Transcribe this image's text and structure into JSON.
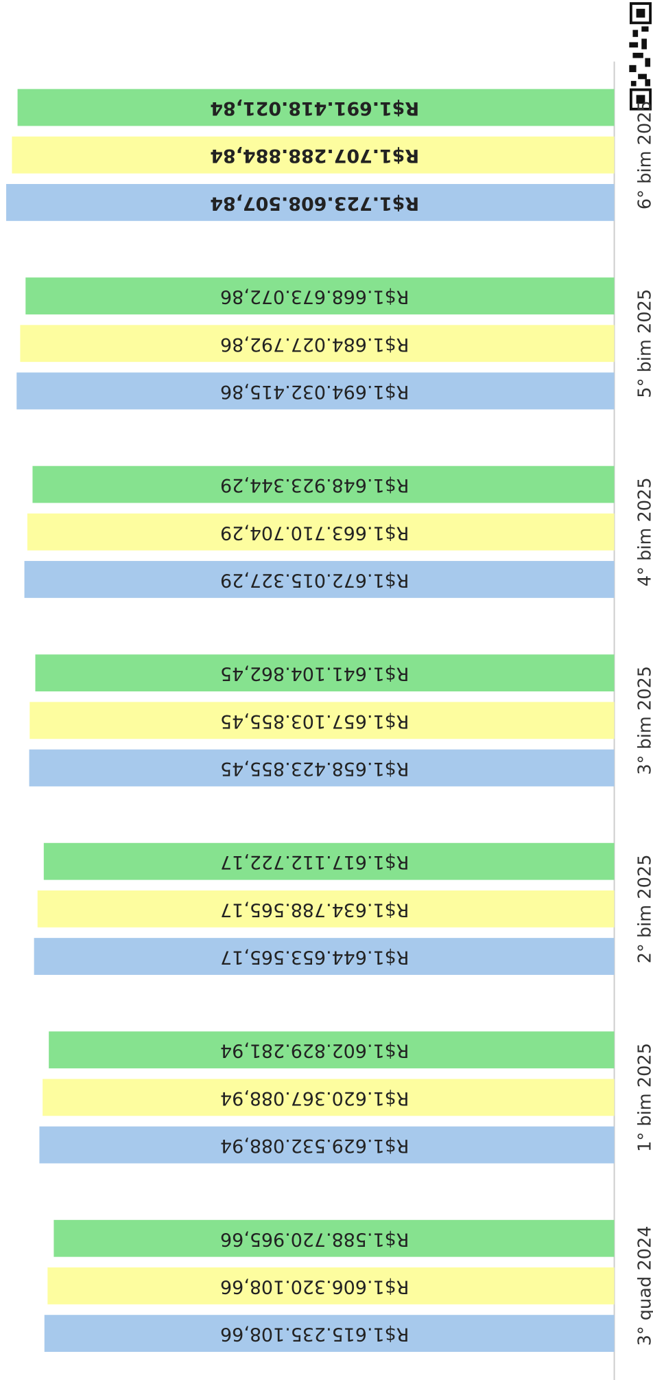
{
  "chart_data": {
    "type": "bar",
    "orientation": "horizontal",
    "categories": [
      "3° quad 2024",
      "1° bim 2025",
      "2° bim 2025",
      "3° bim 2025",
      "4° bim 2025",
      "5° bim 2025",
      "6° bim 2025"
    ],
    "xlim": [
      0,
      1741000000
    ],
    "series": [
      {
        "color": "#a7c9ec",
        "values": [
          1615235108.66,
          1629532088.94,
          1644653565.17,
          1658423855.45,
          1672015327.29,
          1694032415.86,
          1723608507.84
        ],
        "value_labels": [
          "R$1.615.235.108,66",
          "R$1.629.532.088,94",
          "R$1.644.653.565,17",
          "R$1.658.423.855,45",
          "R$1.672.015.327,29",
          "R$1.694.032.415,86",
          "R$1.723.608.507,84"
        ]
      },
      {
        "color": "#fdfd9f",
        "values": [
          1606320108.66,
          1620367088.94,
          1634788565.17,
          1657103855.45,
          1663710704.29,
          1684027792.86,
          1707288884.84
        ],
        "value_labels": [
          "R$1.606.320.108,66",
          "R$1.620.367.088,94",
          "R$1.634.788.565,17",
          "R$1.657.103.855,45",
          "R$1.663.710.704,29",
          "R$1.684.027.792,86",
          "R$1.707.288.884,84"
        ]
      },
      {
        "color": "#86e28f",
        "values": [
          1588720965.66,
          1602829281.94,
          1617112722.17,
          1641104862.45,
          1648923344.29,
          1668673072.86,
          1691418021.84
        ],
        "value_labels": [
          "R$1.588.720.965,66",
          "R$1.602.829.281,94",
          "R$1.617.112.722,17",
          "R$1.641.104.862,45",
          "R$1.648.923.344,29",
          "R$1.668.673.072,86",
          "R$1.691.418.021,84"
        ]
      }
    ]
  }
}
